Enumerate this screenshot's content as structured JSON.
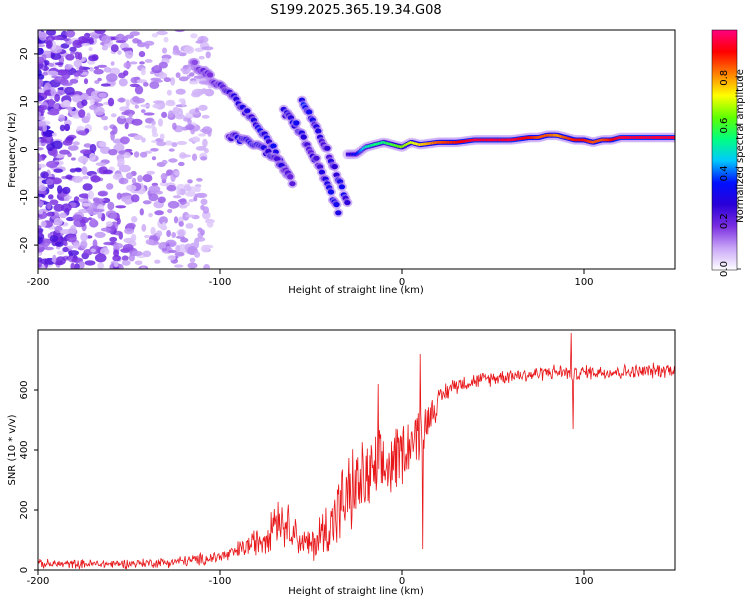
{
  "title": "S199.2025.365.19.34.G08",
  "chart_data": [
    {
      "type": "heatmap",
      "name": "spectrogram",
      "xlabel": "Height of straight line (km)",
      "ylabel": "Frequency (Hz)",
      "xlim": [
        -200,
        150
      ],
      "ylim": [
        -25,
        25
      ],
      "xticks": [
        -200,
        -100,
        0,
        100
      ],
      "yticks": [
        -20,
        -10,
        0,
        10,
        20
      ],
      "colorbar": {
        "label": "Normalized spectral amplitude",
        "range": [
          0,
          1
        ],
        "ticks": [
          "0.0",
          "0.2",
          "0.4",
          "0.6",
          "0.8"
        ],
        "tick_values": [
          0,
          0.2,
          0.4,
          0.6,
          0.8
        ],
        "colormap": [
          "#ffffff",
          "#c9a6f7",
          "#7a2ee0",
          "#2a00d8",
          "#0010ff",
          "#00c8ff",
          "#00ff80",
          "#60ff00",
          "#ffff00",
          "#ff8000",
          "#ff0000",
          "#ff0080"
        ]
      },
      "ridge_main": {
        "x": [
          -30,
          -25,
          -20,
          -15,
          -10,
          -5,
          0,
          5,
          10,
          20,
          30,
          40,
          50,
          60,
          70,
          75,
          80,
          85,
          90,
          95,
          100,
          105,
          110,
          115,
          120,
          130,
          140,
          150
        ],
        "y": [
          -1,
          -1,
          0.5,
          1,
          1.5,
          1,
          0.5,
          1.5,
          1,
          1.5,
          1.5,
          2,
          2,
          2,
          2.5,
          2.5,
          3,
          3,
          2.5,
          2,
          2,
          1.5,
          2,
          2,
          2.5,
          2.5,
          2.5,
          2.5
        ],
        "amp": [
          0.25,
          0.35,
          0.5,
          0.55,
          0.55,
          0.6,
          0.65,
          0.7,
          0.75,
          0.85,
          0.9,
          0.95,
          0.95,
          0.95,
          0.9,
          0.85,
          0.85,
          0.8,
          0.85,
          0.9,
          0.9,
          0.85,
          0.85,
          0.9,
          0.95,
          0.95,
          0.95,
          0.95
        ]
      },
      "ridge_upper": {
        "x": [
          -115,
          -105,
          -95,
          -88,
          -80,
          -70,
          -62
        ],
        "y": [
          18,
          15,
          12,
          9,
          5,
          0,
          -6
        ],
        "amp": [
          0.15,
          0.2,
          0.25,
          0.3,
          0.3,
          0.3,
          0.3
        ]
      },
      "ridge_middle": {
        "x": [
          -95,
          -88,
          -80,
          -72,
          -65,
          -60
        ],
        "y": [
          3,
          2,
          1,
          -1,
          -4,
          -7
        ],
        "amp": [
          0.25,
          0.3,
          0.3,
          0.3,
          0.25,
          0.2
        ]
      },
      "ridge_steep": {
        "x": [
          -55,
          -50,
          -45,
          -40,
          -35,
          -30
        ],
        "y": [
          10,
          7,
          3,
          -1,
          -6,
          -11
        ],
        "amp": [
          0.35,
          0.3,
          0.25,
          0.25,
          0.3,
          0.3
        ]
      },
      "ridge_lower": {
        "x": [
          -65,
          -58,
          -52,
          -46,
          -40,
          -35
        ],
        "y": [
          8,
          5,
          1,
          -3,
          -8,
          -13
        ],
        "amp": [
          0.3,
          0.3,
          0.25,
          0.25,
          0.3,
          0.3
        ]
      }
    },
    {
      "type": "line",
      "name": "snr",
      "xlabel": "Height of straight line (km)",
      "ylabel": "SNR (10 * v/v)",
      "xlim": [
        -200,
        150
      ],
      "ylim": [
        0,
        800
      ],
      "xticks": [
        -200,
        -100,
        0,
        100
      ],
      "yticks": [
        0,
        200,
        400,
        600
      ],
      "color": "#e8171a",
      "envelope": {
        "x": [
          -200,
          -160,
          -130,
          -110,
          -95,
          -85,
          -75,
          -70,
          -65,
          -60,
          -55,
          -50,
          -45,
          -40,
          -35,
          -30,
          -25,
          -20,
          -15,
          -10,
          -5,
          0,
          5,
          10,
          12,
          15,
          20,
          25,
          30,
          40,
          50,
          60,
          70,
          80,
          90,
          95,
          100,
          110,
          120,
          130,
          140,
          150
        ],
        "mean": [
          20,
          20,
          25,
          35,
          50,
          80,
          110,
          180,
          160,
          140,
          90,
          80,
          110,
          150,
          200,
          240,
          280,
          300,
          320,
          330,
          360,
          400,
          430,
          460,
          460,
          520,
          560,
          600,
          620,
          630,
          640,
          650,
          650,
          660,
          660,
          650,
          660,
          660,
          660,
          660,
          665,
          670
        ],
        "spread": [
          18,
          18,
          20,
          25,
          30,
          45,
          70,
          110,
          90,
          80,
          60,
          70,
          100,
          130,
          150,
          160,
          170,
          160,
          150,
          150,
          140,
          130,
          120,
          110,
          100,
          80,
          50,
          40,
          35,
          30,
          30,
          30,
          30,
          30,
          30,
          30,
          30,
          30,
          30,
          30,
          30,
          30
        ]
      },
      "spikes": [
        {
          "x": -13,
          "y": 620
        },
        {
          "x": 10,
          "y": 720
        },
        {
          "x": 11.5,
          "y": 70
        },
        {
          "x": 93,
          "y": 790
        },
        {
          "x": 94,
          "y": 470
        }
      ]
    }
  ]
}
